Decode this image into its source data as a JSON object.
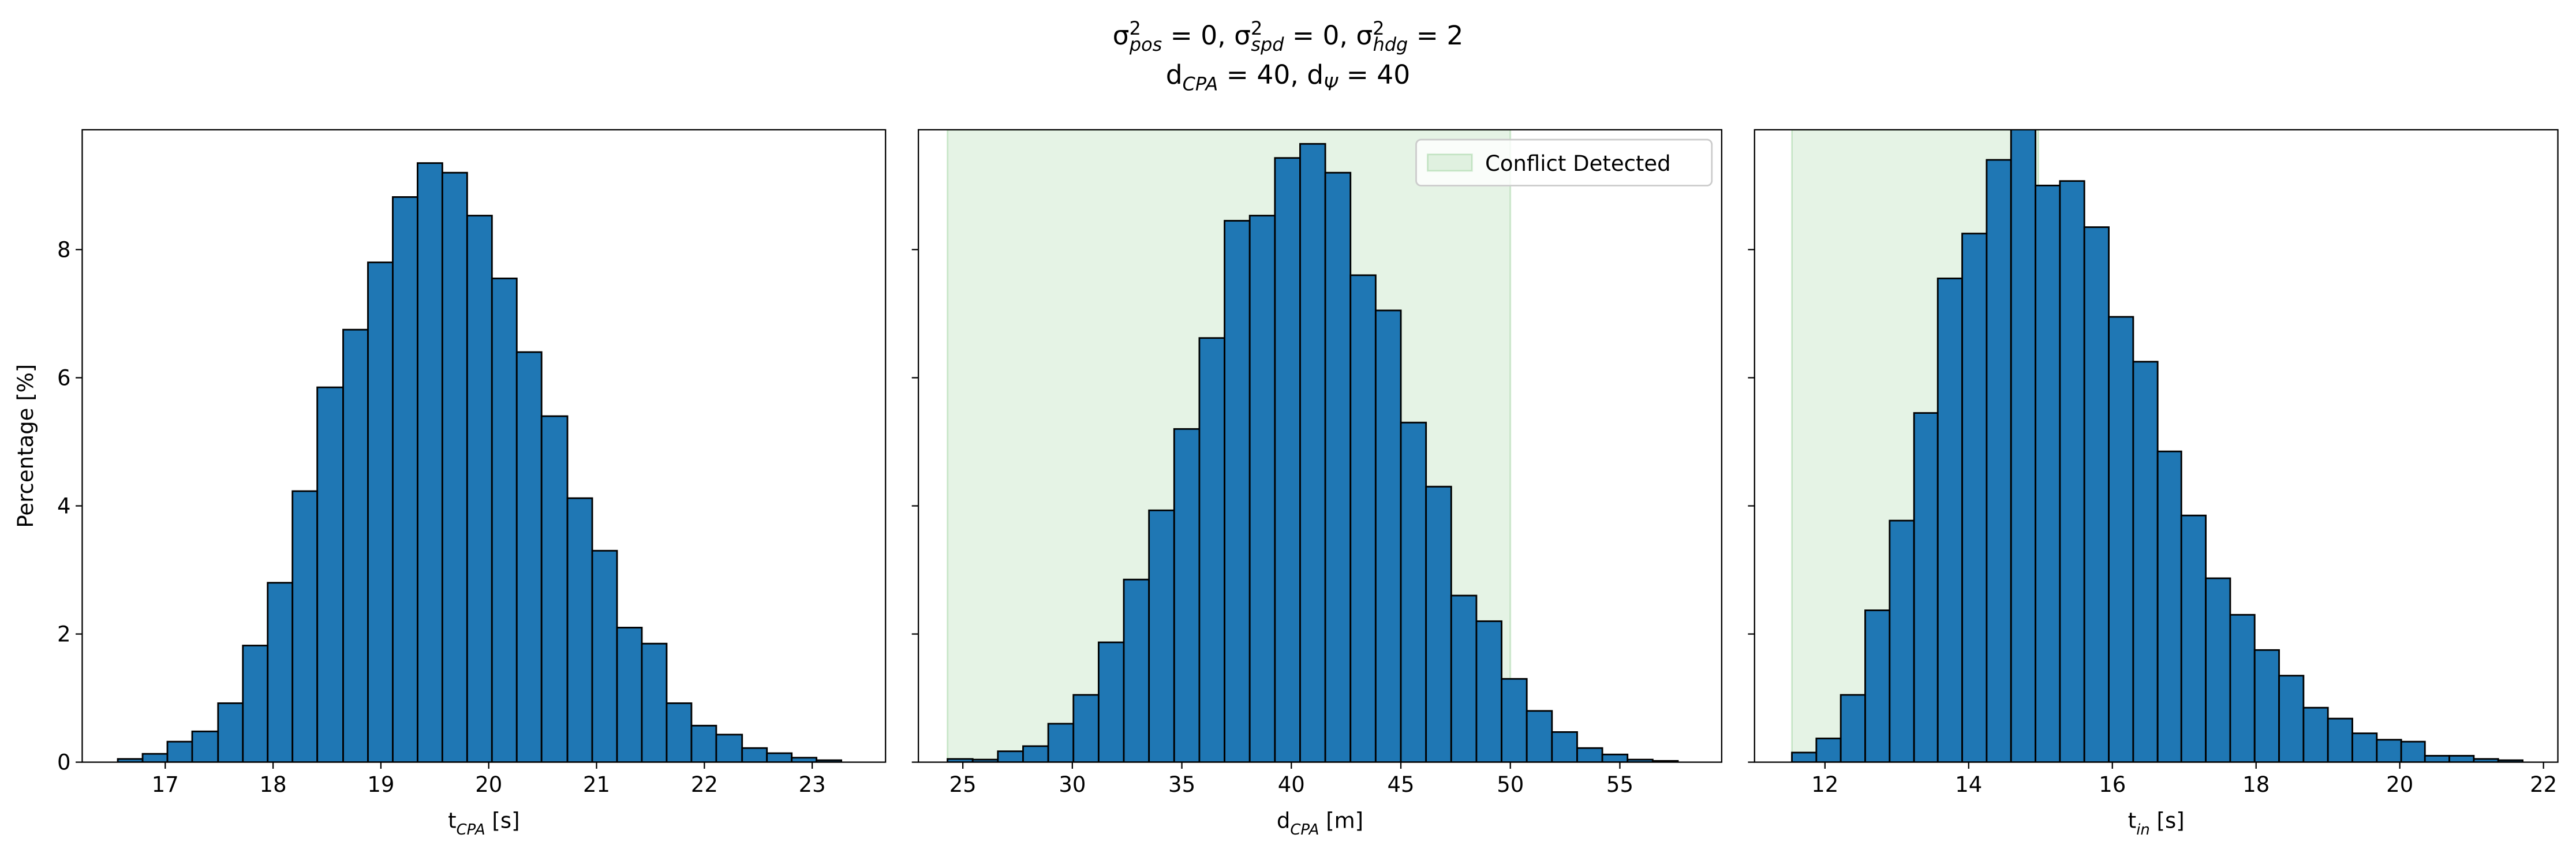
{
  "title": [
    "σ^{2}_{pos} = 0, σ^{2}_{spd} = 0, σ^{2}_{hdg} = 2",
    "d_{CPA} = 40, d_{Ψ} = 40"
  ],
  "chart_data": [
    {
      "type": "histogram",
      "xlabel": "t_{CPA} [s]",
      "ylabel": "Percentage [%]",
      "color": "#1f77b4",
      "edgecolor": "#000000",
      "bins": [
        16.56,
        16.79,
        17.02,
        17.25,
        17.49,
        17.72,
        17.95,
        18.18,
        18.41,
        18.65,
        18.88,
        19.11,
        19.34,
        19.57,
        19.8,
        20.03,
        20.26,
        20.49,
        20.73,
        20.96,
        21.19,
        21.42,
        21.65,
        21.88,
        22.11,
        22.35,
        22.58,
        22.81,
        23.04,
        23.27
      ],
      "values": [
        0.05,
        0.13,
        0.32,
        0.48,
        0.92,
        1.82,
        2.8,
        4.23,
        5.85,
        6.75,
        7.8,
        8.82,
        9.35,
        9.2,
        8.53,
        7.55,
        6.4,
        5.4,
        4.12,
        3.3,
        2.1,
        1.85,
        0.92,
        0.57,
        0.43,
        0.22,
        0.14,
        0.07,
        0.03
      ],
      "xlim": [
        16.23,
        23.68
      ],
      "xticks": [
        17,
        18,
        19,
        20,
        21,
        22,
        23
      ],
      "ylim": [
        0,
        9.87
      ],
      "yticks": [
        0,
        2,
        4,
        6,
        8
      ],
      "ytick_labels": true
    },
    {
      "type": "histogram",
      "xlabel": "d_{CPA} [m]",
      "color": "#1f77b4",
      "edgecolor": "#000000",
      "bins": [
        24.3,
        25.45,
        26.6,
        27.75,
        28.9,
        30.05,
        31.2,
        32.35,
        33.5,
        34.65,
        35.8,
        36.95,
        38.1,
        39.25,
        40.4,
        41.55,
        42.7,
        43.85,
        45,
        46.15,
        47.3,
        48.45,
        49.6,
        50.75,
        51.9,
        53.05,
        54.2,
        55.35,
        56.5,
        57.65
      ],
      "values": [
        0.05,
        0.04,
        0.17,
        0.25,
        0.6,
        1.05,
        1.87,
        2.85,
        3.93,
        5.2,
        6.62,
        8.45,
        8.53,
        9.43,
        9.65,
        9.2,
        7.6,
        7.05,
        5.3,
        4.3,
        2.6,
        2.2,
        1.3,
        0.8,
        0.47,
        0.22,
        0.12,
        0.04,
        0.02
      ],
      "xlim": [
        22.97,
        59.65
      ],
      "xticks": [
        25,
        30,
        35,
        40,
        45,
        50,
        55
      ],
      "ylim": [
        0,
        9.87
      ],
      "yticks": [
        0,
        2,
        4,
        6,
        8
      ],
      "ytick_labels": false,
      "span": {
        "name": "Conflict Detected",
        "range": [
          24.3,
          50
        ],
        "color": "#2ca02c"
      },
      "legend": "upper right"
    },
    {
      "type": "histogram",
      "xlabel": "t_{in} [s]",
      "color": "#1f77b4",
      "edgecolor": "#000000",
      "bins": [
        11.54,
        11.88,
        12.22,
        12.56,
        12.9,
        13.24,
        13.57,
        13.91,
        14.25,
        14.59,
        14.93,
        15.27,
        15.61,
        15.95,
        16.29,
        16.63,
        16.96,
        17.3,
        17.64,
        17.98,
        18.32,
        18.66,
        19.0,
        19.34,
        19.68,
        20.02,
        20.35,
        20.69,
        21.03,
        21.37,
        21.71
      ],
      "values": [
        0.15,
        0.37,
        1.05,
        2.37,
        3.77,
        5.45,
        7.55,
        8.25,
        9.4,
        10.1,
        9.0,
        9.07,
        8.35,
        6.95,
        6.25,
        4.85,
        3.85,
        2.87,
        2.3,
        1.75,
        1.35,
        0.85,
        0.68,
        0.45,
        0.35,
        0.32,
        0.1,
        0.1,
        0.05,
        0.03
      ],
      "xlim": [
        11.02,
        22.2
      ],
      "xticks": [
        12,
        14,
        16,
        18,
        20,
        22
      ],
      "ylim": [
        0,
        9.87
      ],
      "yticks": [
        0,
        2,
        4,
        6,
        8
      ],
      "ytick_labels": false,
      "span": {
        "range": [
          11.54,
          14.97
        ],
        "color": "#2ca02c"
      }
    }
  ]
}
